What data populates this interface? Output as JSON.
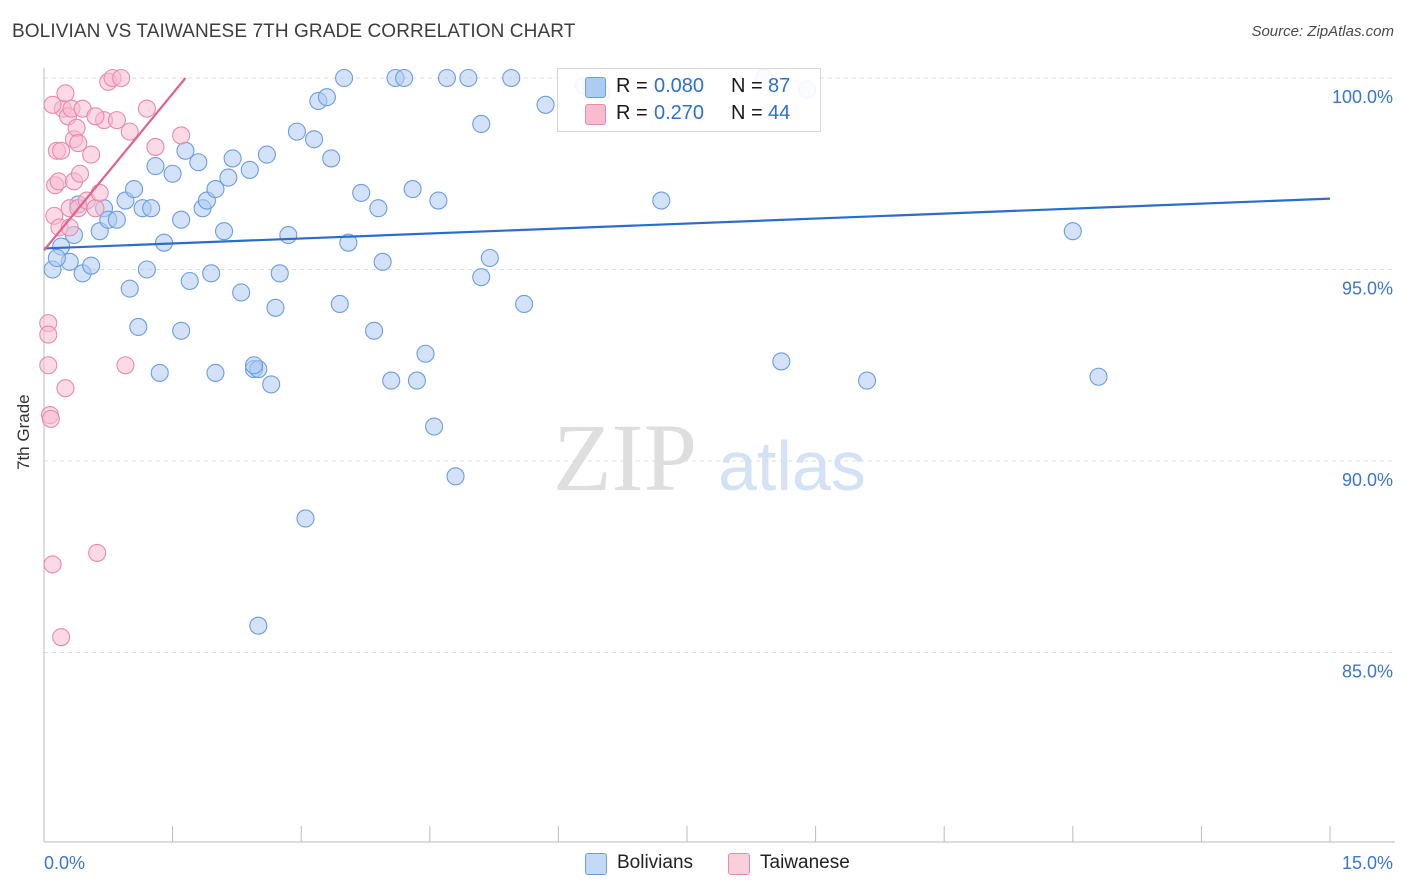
{
  "header": {
    "title": "BOLIVIAN VS TAIWANESE 7TH GRADE CORRELATION CHART",
    "source": "Source: ZipAtlas.com"
  },
  "watermark": {
    "zip": "ZIP",
    "atlas": "atlas"
  },
  "legend_top": {
    "rows": [
      {
        "r_label": "R =",
        "r_value": "0.080",
        "n_label": "N =",
        "n_value": "87"
      },
      {
        "r_label": "R =",
        "r_value": "0.270",
        "n_label": "N =",
        "n_value": "44"
      }
    ]
  },
  "legend_bottom": {
    "items": [
      {
        "label": "Bolivians"
      },
      {
        "label": "Taiwanese"
      }
    ]
  },
  "colors": {
    "blue_fill": "#aecbf2",
    "blue_stroke": "#6b9ee0",
    "blue_line": "#2b6dcc",
    "pink_fill": "#f7bccf",
    "pink_stroke": "#e98aaa",
    "pink_line": "#e0628f",
    "tick_label": "#3a76d0",
    "grid": "#dcdcdc",
    "axis": "#bbbbbb"
  },
  "chart_data": {
    "type": "scatter",
    "title": "BOLIVIAN VS TAIWANESE 7TH GRADE CORRELATION CHART",
    "xlabel": "",
    "ylabel": "7th Grade",
    "xlim": [
      0.0,
      15.0
    ],
    "ylim": [
      80.0,
      101.0
    ],
    "x_tick_labels": [
      "0.0%",
      "15.0%"
    ],
    "y_ticks": [
      85.0,
      90.0,
      95.0,
      100.0
    ],
    "y_tick_labels": [
      "85.0%",
      "90.0%",
      "95.0%",
      "100.0%"
    ],
    "grid": true,
    "series": [
      {
        "name": "Bolivians",
        "R": 0.08,
        "N": 87,
        "trend": {
          "x": [
            0.0,
            15.0
          ],
          "y": [
            95.55,
            96.85
          ]
        },
        "points": [
          [
            0.1,
            95.0
          ],
          [
            0.2,
            95.6
          ],
          [
            0.3,
            95.2
          ],
          [
            0.35,
            95.9
          ],
          [
            0.4,
            96.7
          ],
          [
            0.45,
            94.9
          ],
          [
            0.55,
            95.1
          ],
          [
            0.65,
            96.0
          ],
          [
            0.7,
            96.6
          ],
          [
            0.75,
            96.3
          ],
          [
            0.85,
            96.3
          ],
          [
            0.95,
            96.8
          ],
          [
            1.0,
            94.5
          ],
          [
            1.05,
            97.1
          ],
          [
            1.1,
            93.5
          ],
          [
            1.15,
            96.6
          ],
          [
            1.2,
            95.0
          ],
          [
            1.25,
            96.6
          ],
          [
            1.3,
            97.7
          ],
          [
            1.4,
            95.7
          ],
          [
            1.5,
            97.5
          ],
          [
            1.6,
            96.3
          ],
          [
            1.6,
            93.4
          ],
          [
            1.65,
            98.1
          ],
          [
            1.7,
            94.7
          ],
          [
            1.8,
            97.8
          ],
          [
            1.85,
            96.6
          ],
          [
            1.9,
            96.8
          ],
          [
            1.95,
            94.9
          ],
          [
            2.0,
            97.1
          ],
          [
            2.1,
            96.0
          ],
          [
            2.15,
            97.4
          ],
          [
            2.2,
            97.9
          ],
          [
            2.3,
            94.4
          ],
          [
            2.4,
            97.6
          ],
          [
            2.45,
            92.4
          ],
          [
            2.5,
            92.4
          ],
          [
            2.6,
            98.0
          ],
          [
            2.65,
            92.0
          ],
          [
            2.7,
            94.0
          ],
          [
            2.75,
            94.9
          ],
          [
            2.85,
            95.9
          ],
          [
            2.95,
            98.6
          ],
          [
            3.05,
            88.5
          ],
          [
            3.15,
            98.4
          ],
          [
            3.2,
            99.4
          ],
          [
            3.35,
            97.9
          ],
          [
            3.45,
            94.1
          ],
          [
            3.5,
            100.0
          ],
          [
            3.55,
            95.7
          ],
          [
            3.7,
            97.0
          ],
          [
            3.85,
            93.4
          ],
          [
            3.9,
            96.6
          ],
          [
            3.95,
            95.2
          ],
          [
            4.05,
            92.1
          ],
          [
            4.1,
            100.0
          ],
          [
            4.2,
            100.0
          ],
          [
            4.3,
            97.1
          ],
          [
            4.35,
            92.1
          ],
          [
            4.45,
            92.8
          ],
          [
            4.55,
            90.9
          ],
          [
            4.6,
            96.8
          ],
          [
            4.7,
            100.0
          ],
          [
            4.8,
            89.6
          ],
          [
            4.95,
            100.0
          ],
          [
            5.1,
            98.8
          ],
          [
            5.1,
            94.8
          ],
          [
            5.2,
            95.3
          ],
          [
            5.45,
            100.0
          ],
          [
            5.6,
            94.1
          ],
          [
            5.85,
            99.3
          ],
          [
            6.3,
            99.8
          ],
          [
            7.2,
            96.8
          ],
          [
            7.5,
            99.8
          ],
          [
            8.4,
            100.0
          ],
          [
            8.9,
            99.7
          ],
          [
            8.6,
            92.6
          ],
          [
            9.6,
            92.1
          ],
          [
            12.0,
            96.0
          ],
          [
            12.3,
            92.2
          ],
          [
            1.35,
            92.3
          ],
          [
            2.5,
            85.7
          ],
          [
            2.0,
            92.3
          ],
          [
            3.3,
            99.5
          ],
          [
            6.5,
            99.6
          ],
          [
            0.15,
            95.3
          ],
          [
            2.45,
            92.5
          ]
        ]
      },
      {
        "name": "Taiwanese",
        "R": 0.27,
        "N": 44,
        "trend": {
          "x": [
            0.0,
            1.65
          ],
          "y": [
            95.5,
            100.0
          ]
        },
        "points": [
          [
            0.05,
            93.6
          ],
          [
            0.05,
            93.3
          ],
          [
            0.05,
            92.5
          ],
          [
            0.07,
            91.2
          ],
          [
            0.08,
            91.1
          ],
          [
            0.1,
            87.3
          ],
          [
            0.12,
            96.4
          ],
          [
            0.13,
            97.2
          ],
          [
            0.15,
            98.1
          ],
          [
            0.17,
            97.3
          ],
          [
            0.18,
            96.1
          ],
          [
            0.2,
            98.1
          ],
          [
            0.2,
            85.4
          ],
          [
            0.22,
            99.2
          ],
          [
            0.25,
            91.9
          ],
          [
            0.25,
            99.6
          ],
          [
            0.28,
            99.0
          ],
          [
            0.3,
            96.6
          ],
          [
            0.3,
            96.1
          ],
          [
            0.32,
            99.2
          ],
          [
            0.35,
            98.4
          ],
          [
            0.35,
            97.3
          ],
          [
            0.38,
            98.7
          ],
          [
            0.4,
            96.6
          ],
          [
            0.4,
            98.3
          ],
          [
            0.42,
            97.5
          ],
          [
            0.45,
            99.2
          ],
          [
            0.5,
            96.8
          ],
          [
            0.55,
            98.0
          ],
          [
            0.6,
            96.6
          ],
          [
            0.65,
            97.0
          ],
          [
            0.7,
            98.9
          ],
          [
            0.75,
            99.9
          ],
          [
            0.8,
            100.0
          ],
          [
            0.85,
            98.9
          ],
          [
            0.9,
            100.0
          ],
          [
            0.95,
            92.5
          ],
          [
            1.0,
            98.6
          ],
          [
            1.2,
            99.2
          ],
          [
            1.3,
            98.2
          ],
          [
            1.6,
            98.5
          ],
          [
            0.6,
            99.0
          ],
          [
            0.1,
            99.3
          ],
          [
            0.62,
            87.6
          ]
        ]
      }
    ]
  }
}
